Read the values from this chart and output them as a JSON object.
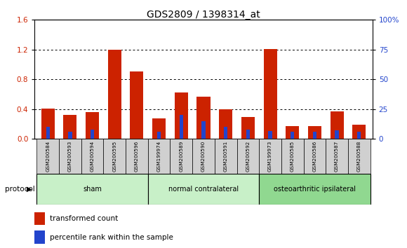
{
  "title": "GDS2809 / 1398314_at",
  "samples": [
    "GSM200584",
    "GSM200593",
    "GSM200594",
    "GSM200595",
    "GSM200596",
    "GSM199974",
    "GSM200589",
    "GSM200590",
    "GSM200591",
    "GSM200592",
    "GSM199973",
    "GSM200585",
    "GSM200586",
    "GSM200587",
    "GSM200588"
  ],
  "red_values": [
    0.41,
    0.32,
    0.36,
    1.2,
    0.91,
    0.28,
    0.62,
    0.57,
    0.4,
    0.29,
    1.21,
    0.17,
    0.17,
    0.37,
    0.19
  ],
  "blue_values_pct": [
    10,
    6,
    8,
    0,
    0,
    6,
    20,
    15,
    10,
    8,
    6.5,
    6,
    6,
    7,
    6
  ],
  "groups": [
    {
      "label": "sham",
      "start": 0,
      "end": 5,
      "color": "#c8f0c8"
    },
    {
      "label": "normal contralateral",
      "start": 5,
      "end": 10,
      "color": "#c8f0c8"
    },
    {
      "label": "osteoarthritic ipsilateral",
      "start": 10,
      "end": 15,
      "color": "#90d890"
    }
  ],
  "ylim_left": [
    0,
    1.6
  ],
  "ylim_right": [
    0,
    100
  ],
  "yticks_left": [
    0,
    0.4,
    0.8,
    1.2,
    1.6
  ],
  "yticks_right": [
    0,
    25,
    50,
    75,
    100
  ],
  "ytick_labels_right": [
    "0",
    "25",
    "50",
    "75",
    "100%"
  ],
  "bar_width": 0.6,
  "red_color": "#cc2200",
  "blue_color": "#2244cc",
  "tick_label_color_left": "#cc2200",
  "tick_label_color_right": "#2244cc",
  "legend_red_label": "transformed count",
  "legend_blue_label": "percentile rank within the sample",
  "protocol_label": "protocol",
  "sample_bg_color": "#d0d0d0",
  "group_colors": [
    "#c8f0c8",
    "#c8f0c8",
    "#90d890"
  ]
}
